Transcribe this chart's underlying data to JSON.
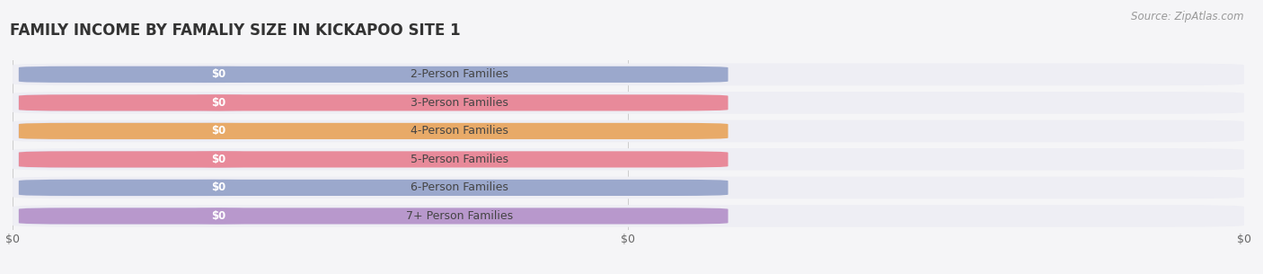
{
  "title": "FAMILY INCOME BY FAMALIY SIZE IN KICKAPOO SITE 1",
  "source": "Source: ZipAtlas.com",
  "categories": [
    "2-Person Families",
    "3-Person Families",
    "4-Person Families",
    "5-Person Families",
    "6-Person Families",
    "7+ Person Families"
  ],
  "values": [
    0,
    0,
    0,
    0,
    0,
    0
  ],
  "bar_colors": [
    "#9ba8cc",
    "#e88a9a",
    "#e8aa68",
    "#e88a9a",
    "#9ba8cc",
    "#b898cc"
  ],
  "bg_color": "#f5f5f7",
  "row_bg_color": "#eeeeF4",
  "pill_bg_color": "#ffffff",
  "xlim_max": 1.0,
  "title_fontsize": 12,
  "source_fontsize": 8.5,
  "tick_fontsize": 9,
  "cat_fontsize": 9,
  "val_fontsize": 8.5
}
